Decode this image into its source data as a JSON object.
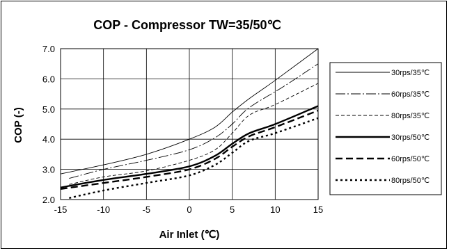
{
  "chart_data": {
    "type": "line",
    "title": "COP - Compressor TW=35/50℃",
    "xlabel": "Air Inlet (℃)",
    "ylabel": "COP (-)",
    "xlim": [
      -15,
      15
    ],
    "ylim": [
      2.0,
      7.0
    ],
    "xticks": [
      "-15",
      "-10",
      "-5",
      "0",
      "5",
      "10",
      "15"
    ],
    "yticks": [
      "2.0",
      "3.0",
      "4.0",
      "5.0",
      "6.0",
      "7.0"
    ],
    "grid": true,
    "legend_position": "right",
    "series": [
      {
        "name": "30rps/35℃",
        "style": "thin-solid",
        "x": [
          -15,
          -10,
          -5,
          0,
          3,
          5,
          7,
          10,
          15
        ],
        "y": [
          2.85,
          3.15,
          3.5,
          4.0,
          4.4,
          4.9,
          5.35,
          5.95,
          7.0
        ]
      },
      {
        "name": "60rps/35℃",
        "style": "thin-longdash",
        "x": [
          -14,
          -10,
          -5,
          0,
          3,
          5,
          7,
          11,
          15
        ],
        "y": [
          2.7,
          3.0,
          3.3,
          3.65,
          4.05,
          4.5,
          5.05,
          5.75,
          6.5
        ]
      },
      {
        "name": "80rps/35℃",
        "style": "thin-shortdash",
        "x": [
          -14,
          -10,
          -5,
          0,
          3,
          5,
          7,
          10,
          15
        ],
        "y": [
          2.5,
          2.75,
          2.95,
          3.3,
          3.65,
          4.2,
          4.8,
          5.15,
          5.85
        ]
      },
      {
        "name": "30rps/50℃",
        "style": "thick-solid",
        "x": [
          -15,
          -10,
          -5,
          0,
          3,
          5,
          7,
          10,
          15
        ],
        "y": [
          2.4,
          2.65,
          2.85,
          3.1,
          3.45,
          3.85,
          4.2,
          4.5,
          5.1
        ]
      },
      {
        "name": "60rps/50℃",
        "style": "thick-dash",
        "x": [
          -15,
          -10,
          -5,
          0,
          3,
          5,
          7,
          10,
          15
        ],
        "y": [
          2.35,
          2.55,
          2.75,
          3.0,
          3.35,
          3.75,
          4.1,
          4.4,
          4.95
        ]
      },
      {
        "name": "80rps/50℃",
        "style": "thick-dot",
        "x": [
          -14,
          -10,
          -5,
          0,
          3,
          5,
          7,
          10,
          15
        ],
        "y": [
          2.05,
          2.3,
          2.55,
          2.8,
          3.15,
          3.55,
          3.95,
          4.2,
          4.7
        ]
      }
    ]
  }
}
